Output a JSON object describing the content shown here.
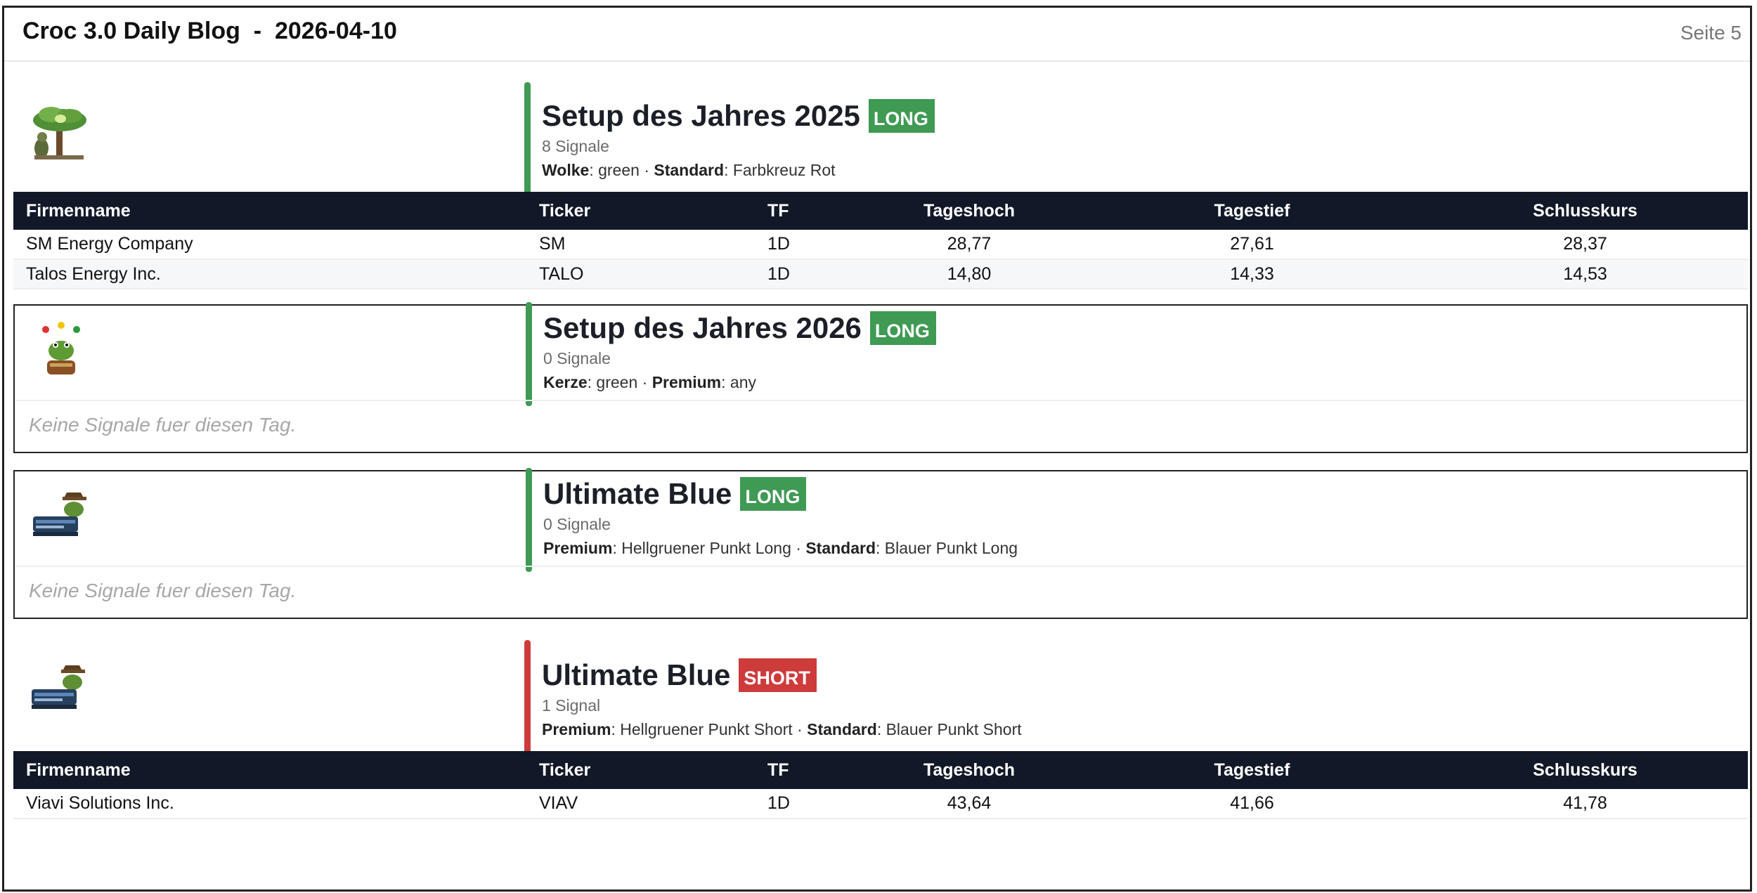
{
  "header": {
    "title": "Croc 3.0 Daily Blog  -  2026-04-10",
    "page": "Seite 5"
  },
  "colors": {
    "long": "#3f9a54",
    "short": "#cd3b3b",
    "table_header": "#111827"
  },
  "columns": [
    "Firmenname",
    "Ticker",
    "TF",
    "Tageshoch",
    "Tagestief",
    "Schlusskurs"
  ],
  "no_signals": "Keine Signale fuer diesen Tag.",
  "sections": [
    {
      "title": "Setup des Jahres 2025",
      "badge": "LONG",
      "count": "8 Signale",
      "crit": [
        {
          "k": "Wolke",
          "v": ": green · "
        },
        {
          "k": "Standard",
          "v": ": Farbkreuz Rot"
        }
      ],
      "logo": "tree-crocodile-icon",
      "rows": [
        [
          "SM Energy Company",
          "SM",
          "1D",
          "28,77",
          "27,61",
          "28,37"
        ],
        [
          "Talos Energy Inc.",
          "TALO",
          "1D",
          "14,80",
          "14,33",
          "14,53"
        ]
      ]
    },
    {
      "title": "Setup des Jahres 2026",
      "badge": "LONG",
      "count": "0 Signale",
      "crit": [
        {
          "k": "Kerze",
          "v": ": green · "
        },
        {
          "k": "Premium",
          "v": ": any"
        }
      ],
      "logo": "juggling-frog-icon",
      "rows": []
    },
    {
      "title": "Ultimate Blue",
      "badge": "LONG",
      "count": "0 Signale",
      "crit": [
        {
          "k": "Premium",
          "v": ": Hellgruener Punkt Long · "
        },
        {
          "k": "Standard",
          "v": ": Blauer Punkt Long"
        }
      ],
      "logo": "crocodile-box-icon",
      "rows": []
    },
    {
      "title": "Ultimate Blue",
      "badge": "SHORT",
      "count": "1 Signal",
      "crit": [
        {
          "k": "Premium",
          "v": ": Hellgruener Punkt Short · "
        },
        {
          "k": "Standard",
          "v": ": Blauer Punkt Short"
        }
      ],
      "logo": "crocodile-box-icon",
      "rows": [
        [
          "Viavi Solutions Inc.",
          "VIAV",
          "1D",
          "43,64",
          "41,66",
          "41,78"
        ]
      ]
    }
  ]
}
